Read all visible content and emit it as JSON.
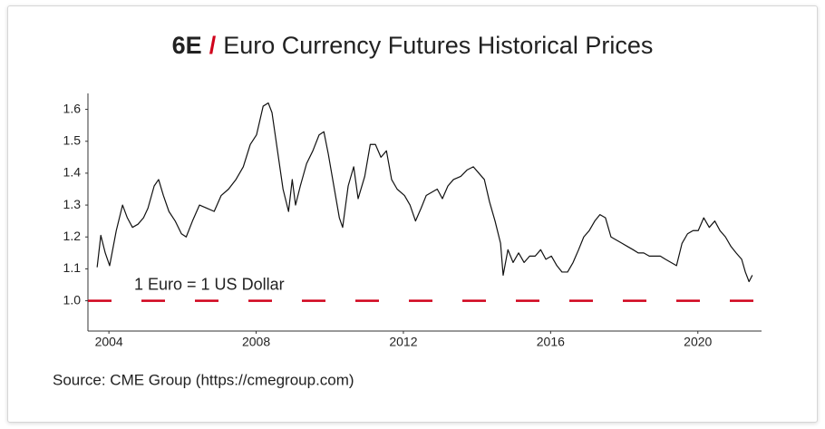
{
  "chart_data": {
    "type": "line",
    "title": {
      "code": "6E",
      "separator": "/",
      "text": "Euro Currency Futures Historical Prices"
    },
    "source": "Source: CME Group (https://cmegroup.com)",
    "x": [
      2003.68,
      2003.78,
      2003.9,
      2004.02,
      2004.2,
      2004.37,
      2004.5,
      2004.64,
      2004.79,
      2004.94,
      2005.06,
      2005.23,
      2005.35,
      2005.48,
      2005.63,
      2005.8,
      2005.97,
      2006.1,
      2006.27,
      2006.46,
      2006.66,
      2006.86,
      2007.05,
      2007.25,
      2007.45,
      2007.65,
      2007.84,
      2008.01,
      2008.19,
      2008.33,
      2008.43,
      2008.58,
      2008.73,
      2008.88,
      2008.98,
      2009.07,
      2009.2,
      2009.37,
      2009.54,
      2009.71,
      2009.84,
      2009.96,
      2010.11,
      2010.26,
      2010.35,
      2010.5,
      2010.65,
      2010.77,
      2010.95,
      2011.1,
      2011.24,
      2011.39,
      2011.54,
      2011.68,
      2011.83,
      2012.03,
      2012.18,
      2012.33,
      2012.48,
      2012.62,
      2012.77,
      2012.92,
      2013.06,
      2013.21,
      2013.36,
      2013.56,
      2013.73,
      2013.9,
      2014.05,
      2014.2,
      2014.34,
      2014.49,
      2014.64,
      2014.71,
      2014.84,
      2014.98,
      2015.13,
      2015.28,
      2015.43,
      2015.58,
      2015.73,
      2015.87,
      2016.02,
      2016.17,
      2016.31,
      2016.46,
      2016.61,
      2016.76,
      2016.9,
      2017.05,
      2017.2,
      2017.34,
      2017.49,
      2017.64,
      2017.79,
      2017.94,
      2018.09,
      2018.24,
      2018.38,
      2018.53,
      2018.68,
      2018.83,
      2018.98,
      2019.12,
      2019.27,
      2019.42,
      2019.57,
      2019.72,
      2019.87,
      2020.01,
      2020.16,
      2020.31,
      2020.46,
      2020.6,
      2020.75,
      2020.9,
      2021.04,
      2021.19,
      2021.29,
      2021.39,
      2021.48
    ],
    "values": [
      1.105,
      1.205,
      1.15,
      1.11,
      1.22,
      1.3,
      1.26,
      1.23,
      1.24,
      1.26,
      1.29,
      1.36,
      1.38,
      1.33,
      1.28,
      1.25,
      1.21,
      1.2,
      1.25,
      1.3,
      1.29,
      1.28,
      1.33,
      1.35,
      1.38,
      1.42,
      1.49,
      1.52,
      1.61,
      1.62,
      1.59,
      1.47,
      1.35,
      1.28,
      1.38,
      1.3,
      1.36,
      1.43,
      1.47,
      1.52,
      1.53,
      1.46,
      1.36,
      1.26,
      1.23,
      1.36,
      1.42,
      1.32,
      1.39,
      1.49,
      1.49,
      1.45,
      1.47,
      1.38,
      1.35,
      1.33,
      1.3,
      1.25,
      1.29,
      1.33,
      1.34,
      1.35,
      1.32,
      1.36,
      1.38,
      1.39,
      1.41,
      1.42,
      1.4,
      1.38,
      1.31,
      1.25,
      1.18,
      1.08,
      1.16,
      1.12,
      1.15,
      1.12,
      1.14,
      1.14,
      1.16,
      1.13,
      1.14,
      1.11,
      1.09,
      1.09,
      1.12,
      1.16,
      1.2,
      1.22,
      1.25,
      1.27,
      1.26,
      1.2,
      1.19,
      1.18,
      1.17,
      1.16,
      1.15,
      1.15,
      1.14,
      1.14,
      1.14,
      1.13,
      1.12,
      1.11,
      1.18,
      1.21,
      1.22,
      1.22,
      1.26,
      1.23,
      1.25,
      1.22,
      1.2,
      1.17,
      1.15,
      1.13,
      1.09,
      1.06,
      1.08
    ],
    "color": "#111111",
    "xlim": [
      2003.43,
      2021.73
    ],
    "xticks": [
      2004,
      2008,
      2012,
      2016,
      2020
    ],
    "ylim": [
      0.905,
      1.65
    ],
    "yticks": [
      {
        "value": 1,
        "label": "1.0"
      },
      1.1,
      1.2,
      1.3,
      1.4,
      1.5,
      1.6
    ],
    "reference_line": {
      "value": 1,
      "label": "1 Euro = 1 US Dollar",
      "color": "#d0021b"
    }
  }
}
